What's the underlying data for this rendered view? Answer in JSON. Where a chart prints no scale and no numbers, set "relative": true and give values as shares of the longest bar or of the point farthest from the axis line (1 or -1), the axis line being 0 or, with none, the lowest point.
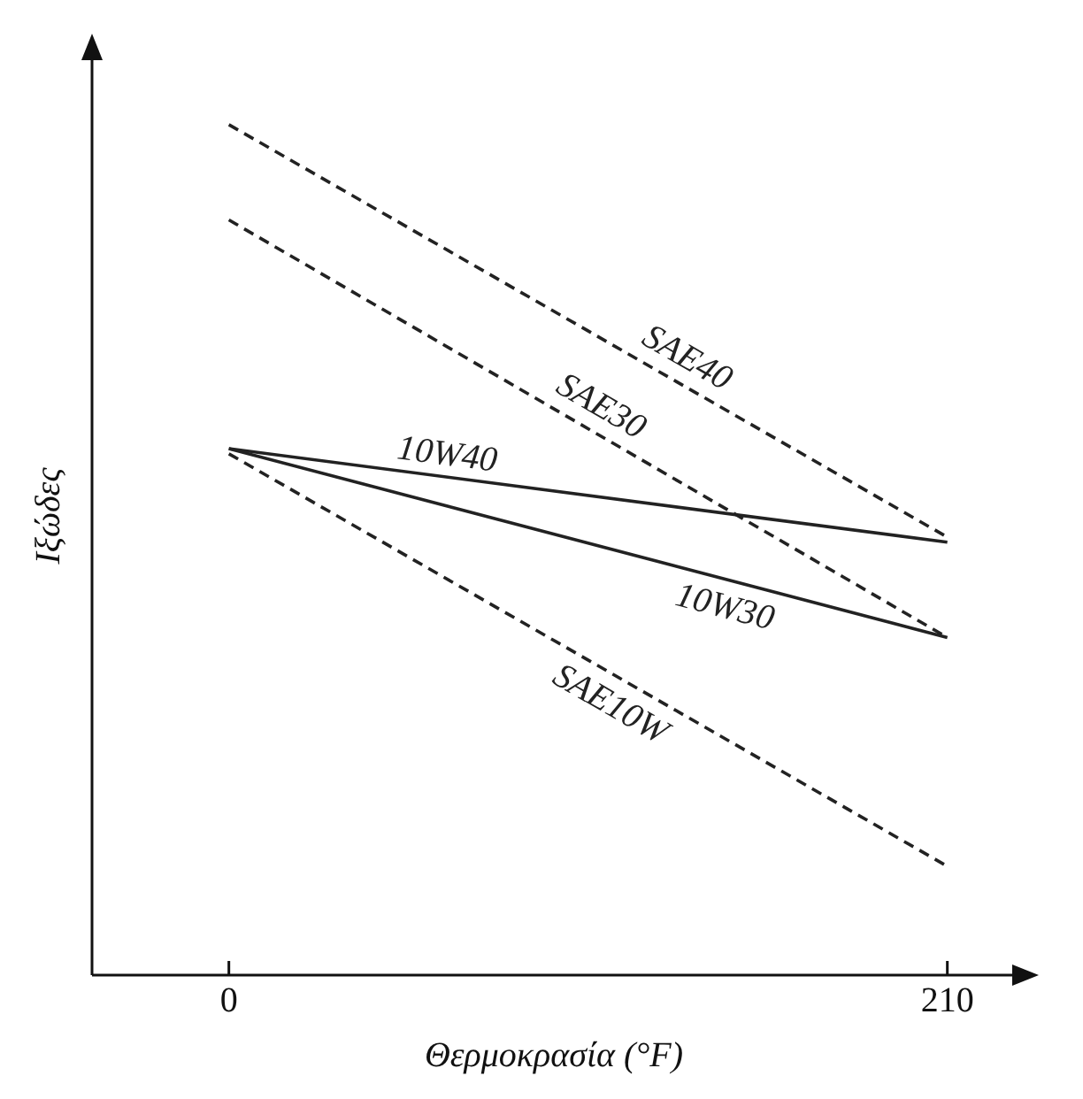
{
  "chart_data": {
    "type": "line",
    "xlabel": "Θερμοκρασία (°F)",
    "ylabel": "Ιξώδες",
    "relative": true,
    "x": [
      0,
      210
    ],
    "xlim": [
      -40,
      230
    ],
    "xticks": [
      0,
      210
    ],
    "grid": false,
    "legend": false,
    "marker": "none",
    "series": [
      {
        "name": "SAE40",
        "color": "#222222",
        "line_style": "dashed",
        "values": [
          1,
          0.515
        ]
      },
      {
        "name": "SAE30",
        "color": "#222222",
        "line_style": "dashed",
        "values": [
          0.888,
          0.397
        ]
      },
      {
        "name": "10W40",
        "color": "#222222",
        "line_style": "solid",
        "values": [
          0.619,
          0.509
        ]
      },
      {
        "name": "10W30",
        "color": "#222222",
        "line_style": "solid",
        "values": [
          0.619,
          0.397
        ]
      },
      {
        "name": "SAE10W",
        "color": "#222222",
        "line_style": "dashed",
        "values": [
          0.613,
          0.128
        ]
      }
    ]
  }
}
